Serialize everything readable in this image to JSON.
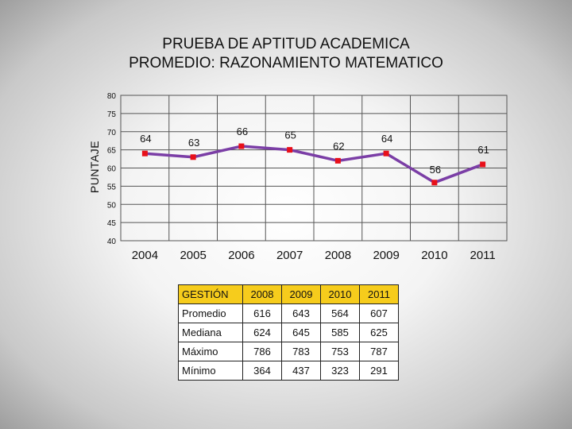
{
  "title_line1": "PRUEBA DE APTITUD ACADEMICA",
  "title_line2": "PROMEDIO: RAZONAMIENTO MATEMATICO",
  "chart_data": {
    "type": "line",
    "title": "PRUEBA DE APTITUD ACADEMICA PROMEDIO: RAZONAMIENTO MATEMATICO",
    "xlabel": "",
    "ylabel": "PUNTAJE",
    "categories": [
      "2004",
      "2005",
      "2006",
      "2007",
      "2008",
      "2009",
      "2010",
      "2011"
    ],
    "values": [
      64,
      63,
      66,
      65,
      62,
      64,
      56,
      61
    ],
    "data_labels": [
      "64",
      "63",
      "66",
      "65",
      "62",
      "64",
      "56",
      "61"
    ],
    "ylim": [
      40,
      80
    ],
    "yticks": [
      80,
      75,
      70,
      65,
      60,
      55,
      50,
      45,
      40
    ],
    "grid": true,
    "legend": "none",
    "line_color": "#7b3ea6",
    "marker_color": "#e8101a"
  },
  "table": {
    "headers": [
      "GESTIÓN",
      "2008",
      "2009",
      "2010",
      "2011"
    ],
    "rows": [
      [
        "Promedio",
        "616",
        "643",
        "564",
        "607"
      ],
      [
        "Mediana",
        "624",
        "645",
        "585",
        "625"
      ],
      [
        "Máximo",
        "786",
        "783",
        "753",
        "787"
      ],
      [
        "Mínimo",
        "364",
        "437",
        "323",
        "291"
      ]
    ]
  },
  "colors": {
    "header_fill": "#f6cc1c",
    "grid": "#555555"
  }
}
